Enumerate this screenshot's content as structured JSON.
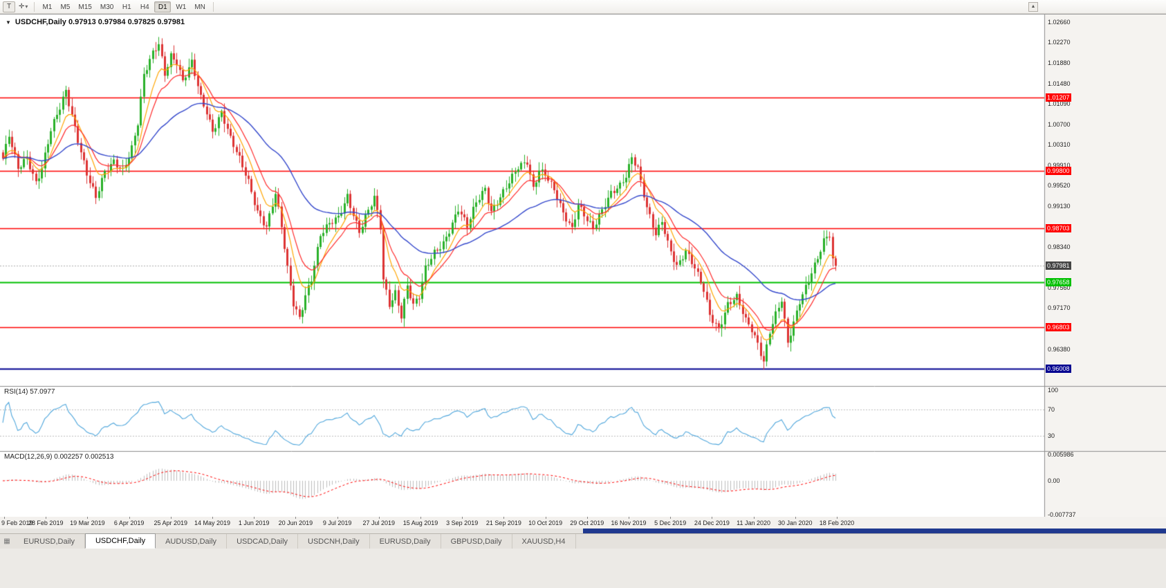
{
  "icons": {
    "title_collapse": "▼",
    "dropdown_caret": "▾",
    "scroll_up": "▲",
    "tab_list": "▦",
    "pointer_tool": "T",
    "crosshair_tool": "✛"
  },
  "toolbar": {
    "timeframes": [
      "M1",
      "M5",
      "M15",
      "M30",
      "H1",
      "H4",
      "D1",
      "W1",
      "MN"
    ],
    "active_timeframe": "D1"
  },
  "chart": {
    "title_line": "USDCHF,Daily 0.97913 0.97984 0.97825 0.97981",
    "symbol": "USDCHF",
    "period": "Daily",
    "price_axis_labels": [
      "1.02660",
      "1.02270",
      "1.01880",
      "1.01480",
      "1.01090",
      "1.00700",
      "1.00310",
      "0.99910",
      "0.99520",
      "0.99130",
      "0.98730",
      "0.98340",
      "0.97950",
      "0.97560",
      "0.97170",
      "0.96770",
      "0.96380",
      "0.95990"
    ],
    "levels": [
      {
        "label": "1.01207",
        "price": 1.01207,
        "color": "#ff0000",
        "width": 1.3
      },
      {
        "label": "0.99800",
        "price": 0.998,
        "color": "#ff0000",
        "width": 1.3
      },
      {
        "label": "0.98703",
        "price": 0.98703,
        "color": "#ff0000",
        "width": 1.3
      },
      {
        "label": "0.97658",
        "price": 0.97658,
        "color": "#00c000",
        "width": 2
      },
      {
        "label": "0.96803",
        "price": 0.96803,
        "color": "#ff0000",
        "width": 1.3
      },
      {
        "label": "0.96008",
        "price": 0.96008,
        "color": "#000090",
        "width": 2
      }
    ],
    "current_price": {
      "label": "0.97981",
      "value": 0.97981,
      "badge_color": "#454545",
      "line_color": "#aaaaaa"
    },
    "colors": {
      "up": "#29b129",
      "down": "#dd3333",
      "ma_fast": "#ffa500",
      "ma_mid": "#ff2a2a",
      "ma_slow": "#3347cc",
      "rsi": "#4ea6dc",
      "rsi_levels": "#bbbbbb",
      "macd_hist": "#bdbdbd",
      "macd_signal": "#ff0000"
    }
  },
  "rsi": {
    "label": "RSI(14) 57.0977",
    "current": 57.0977,
    "axis_labels": [
      "100",
      "70",
      "30"
    ],
    "axis_values": [
      100,
      70,
      30
    ]
  },
  "macd": {
    "label": "MACD(12,26,9) 0.002257 0.002513",
    "current_macd": 0.002257,
    "current_signal": 0.002513,
    "axis_labels": [
      "0.005986",
      "0.00",
      "-0.007737"
    ],
    "axis_values": [
      0.005986,
      0,
      -0.007737
    ]
  },
  "dates": [
    "9 Feb 2019",
    "28 Feb 2019",
    "19 Mar 2019",
    "6 Apr 2019",
    "25 Apr 2019",
    "14 May 2019",
    "1 Jun 2019",
    "20 Jun 2019",
    "9 Jul 2019",
    "27 Jul 2019",
    "15 Aug 2019",
    "3 Sep 2019",
    "21 Sep 2019",
    "10 Oct 2019",
    "29 Oct 2019",
    "16 Nov 2019",
    "5 Dec 2019",
    "24 Dec 2019",
    "11 Jan 2020",
    "30 Jan 2020",
    "18 Feb 2020"
  ],
  "tabs": [
    {
      "label": "EURUSD,Daily",
      "active": false
    },
    {
      "label": "USDCHF,Daily",
      "active": true
    },
    {
      "label": "AUDUSD,Daily",
      "active": false
    },
    {
      "label": "USDCAD,Daily",
      "active": false
    },
    {
      "label": "USDCNH,Daily",
      "active": false
    },
    {
      "label": "EURUSD,Daily",
      "active": false
    },
    {
      "label": "GBPUSD,Daily",
      "active": false
    },
    {
      "label": "XAUUSD,H4",
      "active": false
    }
  ],
  "chart_data": {
    "type": "candlestick",
    "symbol": "USDCHF",
    "timeframe": "Daily",
    "title": "USDCHF,Daily",
    "x_tick_labels": [
      "9 Feb 2019",
      "28 Feb 2019",
      "19 Mar 2019",
      "6 Apr 2019",
      "25 Apr 2019",
      "14 May 2019",
      "1 Jun 2019",
      "20 Jun 2019",
      "9 Jul 2019",
      "27 Jul 2019",
      "15 Aug 2019",
      "3 Sep 2019",
      "21 Sep 2019",
      "10 Oct 2019",
      "29 Oct 2019",
      "16 Nov 2019",
      "5 Dec 2019",
      "24 Dec 2019",
      "11 Jan 2020",
      "30 Jan 2020",
      "18 Feb 2020"
    ],
    "y_range": [
      0.9567,
      1.0281
    ],
    "bars": 279,
    "last_close": 0.97981,
    "ohlc_current": {
      "open": 0.97913,
      "high": 0.97984,
      "low": 0.97825,
      "close": 0.97981
    },
    "close_anchors": [
      [
        0,
        1.0
      ],
      [
        2,
        1.0045
      ],
      [
        5,
        0.9985
      ],
      [
        8,
        1.001
      ],
      [
        11,
        0.996
      ],
      [
        13,
        0.9985
      ],
      [
        16,
        1.0055
      ],
      [
        19,
        1.01
      ],
      [
        21,
        1.0135
      ],
      [
        23,
        1.009
      ],
      [
        26,
        1.002
      ],
      [
        28,
        0.9975
      ],
      [
        31,
        0.9925
      ],
      [
        34,
        0.9975
      ],
      [
        37,
        1.0
      ],
      [
        40,
        0.9985
      ],
      [
        43,
        1.0025
      ],
      [
        45,
        1.007
      ],
      [
        47,
        1.016
      ],
      [
        50,
        1.0205
      ],
      [
        52,
        1.0226
      ],
      [
        54,
        1.017
      ],
      [
        56,
        1.0205
      ],
      [
        58,
        1.019
      ],
      [
        60,
        1.015
      ],
      [
        63,
        1.0185
      ],
      [
        66,
        1.012
      ],
      [
        68,
        1.0095
      ],
      [
        70,
        1.006
      ],
      [
        73,
        1.0095
      ],
      [
        76,
        1.004
      ],
      [
        79,
        1.0
      ],
      [
        82,
        0.996
      ],
      [
        85,
        0.9905
      ],
      [
        88,
        0.9875
      ],
      [
        91,
        0.9935
      ],
      [
        93,
        0.987
      ],
      [
        95,
        0.979
      ],
      [
        97,
        0.9725
      ],
      [
        99,
        0.97
      ],
      [
        101,
        0.9745
      ],
      [
        103,
        0.9775
      ],
      [
        106,
        0.9855
      ],
      [
        109,
        0.9875
      ],
      [
        112,
        0.989
      ],
      [
        115,
        0.9935
      ],
      [
        117,
        0.99
      ],
      [
        119,
        0.9865
      ],
      [
        121,
        0.989
      ],
      [
        124,
        0.9925
      ],
      [
        126,
        0.987
      ],
      [
        127,
        0.977
      ],
      [
        129,
        0.9725
      ],
      [
        131,
        0.975
      ],
      [
        133,
        0.9705
      ],
      [
        135,
        0.976
      ],
      [
        137,
        0.972
      ],
      [
        139,
        0.9735
      ],
      [
        141,
        0.979
      ],
      [
        144,
        0.9825
      ],
      [
        147,
        0.9845
      ],
      [
        150,
        0.988
      ],
      [
        152,
        0.9905
      ],
      [
        155,
        0.987
      ],
      [
        158,
        0.992
      ],
      [
        161,
        0.995
      ],
      [
        163,
        0.9905
      ],
      [
        166,
        0.993
      ],
      [
        169,
        0.9955
      ],
      [
        172,
        0.9985
      ],
      [
        175,
        1.0
      ],
      [
        177,
        0.995
      ],
      [
        179,
        0.9985
      ],
      [
        181,
        0.9975
      ],
      [
        184,
        0.994
      ],
      [
        187,
        0.9895
      ],
      [
        190,
        0.987
      ],
      [
        192,
        0.992
      ],
      [
        194,
        0.99
      ],
      [
        197,
        0.987
      ],
      [
        200,
        0.99
      ],
      [
        203,
        0.9935
      ],
      [
        206,
        0.9955
      ],
      [
        208,
        0.9975
      ],
      [
        210,
        1.001
      ],
      [
        212,
        0.9985
      ],
      [
        215,
        0.9905
      ],
      [
        218,
        0.9855
      ],
      [
        220,
        0.9885
      ],
      [
        222,
        0.9845
      ],
      [
        225,
        0.98
      ],
      [
        228,
        0.9825
      ],
      [
        231,
        0.979
      ],
      [
        234,
        0.975
      ],
      [
        236,
        0.9705
      ],
      [
        239,
        0.968
      ],
      [
        242,
        0.9725
      ],
      [
        245,
        0.9735
      ],
      [
        248,
        0.969
      ],
      [
        250,
        0.9675
      ],
      [
        252,
        0.965
      ],
      [
        254,
        0.9618
      ],
      [
        256,
        0.9675
      ],
      [
        258,
        0.9705
      ],
      [
        260,
        0.973
      ],
      [
        262,
        0.9645
      ],
      [
        264,
        0.9685
      ],
      [
        266,
        0.973
      ],
      [
        268,
        0.976
      ],
      [
        270,
        0.979
      ],
      [
        272,
        0.9815
      ],
      [
        274,
        0.9845
      ],
      [
        276,
        0.9855
      ],
      [
        277,
        0.9805
      ],
      [
        278,
        0.9798
      ]
    ],
    "overlays": {
      "moving_averages": [
        {
          "color_key": "ma_fast",
          "period": 8
        },
        {
          "color_key": "ma_mid",
          "period": 14
        },
        {
          "color_key": "ma_slow",
          "period": 45
        }
      ],
      "horizontal_levels": [
        1.01207,
        0.998,
        0.98703,
        0.97658,
        0.96803,
        0.96008
      ]
    },
    "indicators": [
      {
        "name": "RSI",
        "period": 14,
        "current": 57.0977,
        "scale_marks": [
          100,
          70,
          30
        ]
      },
      {
        "name": "MACD",
        "params": "12,26,9",
        "current": [
          0.002257,
          0.002513
        ],
        "scale_marks": [
          0.005986,
          0,
          -0.007737
        ]
      }
    ]
  }
}
